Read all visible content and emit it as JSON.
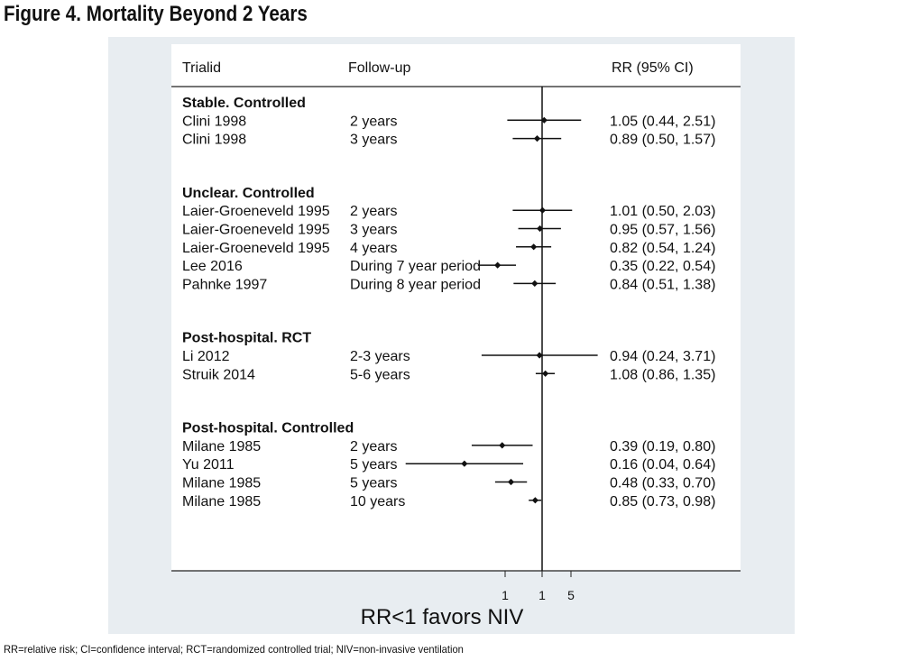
{
  "figure_title": "Figure 4. Mortality Beyond 2 Years",
  "footnote": "RR=relative risk; CI=confidence interval; RCT=randomized controlled trial; NIV=non-invasive ventilation",
  "chart_data": {
    "type": "forest",
    "columns": {
      "study": "Trialid",
      "followup": "Follow-up",
      "estimate": "RR (95% CI)"
    },
    "xlabel": "RR<1  favors  NIV",
    "x_ticks": [
      "1",
      "1",
      "5"
    ],
    "scale": "log",
    "reference_line": 1,
    "groups": [
      {
        "label": "Stable. Controlled",
        "studies": [
          {
            "study": "Clini 1998",
            "followup": "2 years",
            "rr": 1.05,
            "lo": 0.44,
            "hi": 2.51,
            "text": "1.05 (0.44, 2.51)"
          },
          {
            "study": "Clini 1998",
            "followup": "3 years",
            "rr": 0.89,
            "lo": 0.5,
            "hi": 1.57,
            "text": "0.89 (0.50, 1.57)"
          }
        ]
      },
      {
        "label": "Unclear. Controlled",
        "studies": [
          {
            "study": "Laier-Groeneveld 1995",
            "followup": "2 years",
            "rr": 1.01,
            "lo": 0.5,
            "hi": 2.03,
            "text": "1.01 (0.50, 2.03)"
          },
          {
            "study": "Laier-Groeneveld 1995",
            "followup": "3 years",
            "rr": 0.95,
            "lo": 0.57,
            "hi": 1.56,
            "text": "0.95 (0.57, 1.56)"
          },
          {
            "study": "Laier-Groeneveld 1995",
            "followup": "4 years",
            "rr": 0.82,
            "lo": 0.54,
            "hi": 1.24,
            "text": "0.82 (0.54, 1.24)"
          },
          {
            "study": "Lee 2016",
            "followup": "During 7 year period",
            "rr": 0.35,
            "lo": 0.22,
            "hi": 0.54,
            "text": "0.35 (0.22, 0.54)"
          },
          {
            "study": "Pahnke 1997",
            "followup": "During 8 year period",
            "rr": 0.84,
            "lo": 0.51,
            "hi": 1.38,
            "text": "0.84 (0.51, 1.38)"
          }
        ]
      },
      {
        "label": "Post-hospital. RCT",
        "studies": [
          {
            "study": "Li 2012",
            "followup": "2-3 years",
            "rr": 0.94,
            "lo": 0.24,
            "hi": 3.71,
            "text": "0.94 (0.24, 3.71)"
          },
          {
            "study": "Struik 2014",
            "followup": "5-6 years",
            "rr": 1.08,
            "lo": 0.86,
            "hi": 1.35,
            "text": "1.08 (0.86, 1.35)"
          }
        ]
      },
      {
        "label": "Post-hospital. Controlled",
        "studies": [
          {
            "study": "Milane 1985",
            "followup": "2 years",
            "rr": 0.39,
            "lo": 0.19,
            "hi": 0.8,
            "text": "0.39 (0.19, 0.80)"
          },
          {
            "study": "Yu 2011",
            "followup": "5 years",
            "rr": 0.16,
            "lo": 0.04,
            "hi": 0.64,
            "text": "0.16 (0.04, 0.64)"
          },
          {
            "study": "Milane 1985",
            "followup": "5 years",
            "rr": 0.48,
            "lo": 0.33,
            "hi": 0.7,
            "text": "0.48 (0.33, 0.70)"
          },
          {
            "study": "Milane 1985",
            "followup": "10 years",
            "rr": 0.85,
            "lo": 0.73,
            "hi": 0.98,
            "text": "0.85 (0.73, 0.98)"
          }
        ]
      }
    ]
  }
}
